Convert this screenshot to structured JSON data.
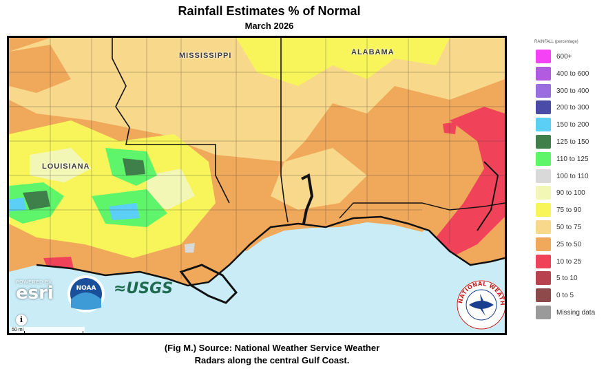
{
  "title": "Rainfall Estimates % of Normal",
  "subtitle": "March 2026",
  "map": {
    "state_labels": [
      {
        "name": "MISSISSIPPI"
      },
      {
        "name": "ALABAMA"
      },
      {
        "name": "LOUISIANA"
      }
    ],
    "attribution": {
      "powered_by": "POWERED BY",
      "esri": "esri",
      "noaa": "NOAA",
      "usgs": "≈USGS"
    },
    "nws_seal_text": "NATIONAL WEATHER SERVICE",
    "info_icon": "info-icon",
    "scale_label": "50 mi"
  },
  "legend": {
    "title": "RAINFALL (percentage)",
    "items": [
      {
        "label": "600+",
        "color": "#f542f5"
      },
      {
        "label": "400 to 600",
        "color": "#b25be0"
      },
      {
        "label": "300 to 400",
        "color": "#9b6ee0"
      },
      {
        "label": "200 to 300",
        "color": "#4a4ba6"
      },
      {
        "label": "150 to 200",
        "color": "#5bcff5"
      },
      {
        "label": "125 to 150",
        "color": "#3f7f4a"
      },
      {
        "label": "110 to 125",
        "color": "#5ef56b"
      },
      {
        "label": "100 to 110",
        "color": "#d9d9d9"
      },
      {
        "label": "90 to 100",
        "color": "#f3f7b5"
      },
      {
        "label": "75 to 90",
        "color": "#f7f55a"
      },
      {
        "label": "50 to 75",
        "color": "#f8d88a"
      },
      {
        "label": "25 to 50",
        "color": "#f0a85a"
      },
      {
        "label": "10 to 25",
        "color": "#f0435a"
      },
      {
        "label": "5 to 10",
        "color": "#b9424f"
      },
      {
        "label": "0 to 5",
        "color": "#8e4a4a"
      },
      {
        "label": "Missing data",
        "color": "#9a9a9a"
      }
    ]
  },
  "caption": {
    "line1": "(Fig M.) Source: National Weather Service Weather",
    "line2": "Radars along the central Gulf Coast."
  }
}
